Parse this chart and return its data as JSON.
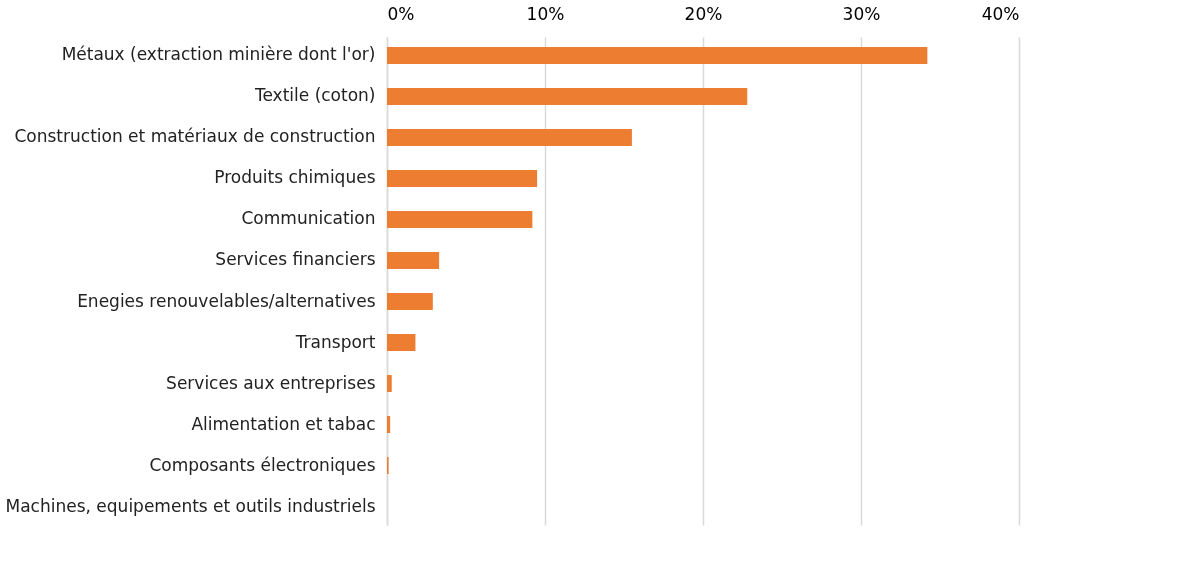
{
  "chart_data": {
    "type": "bar",
    "orientation": "horizontal",
    "categories": [
      "Métaux (extraction minière dont l'or)",
      "Textile (coton)",
      "Construction et matériaux de construction",
      "Produits chimiques",
      "Communication",
      "Services financiers",
      "Enegies renouvelables/alternatives",
      "Transport",
      "Services aux entreprises",
      "Alimentation et tabac",
      "Composants électroniques",
      "Machines, equipements et outils industriels"
    ],
    "values": [
      34.2,
      22.8,
      15.5,
      9.5,
      9.2,
      3.3,
      2.9,
      1.8,
      0.3,
      0.2,
      0.1,
      0.0
    ],
    "color": "#ed7d31",
    "xlim": [
      0,
      40
    ],
    "xticks": [
      {
        "value": 0,
        "label": "0%"
      },
      {
        "value": 10,
        "label": "10%"
      },
      {
        "value": 20,
        "label": "20%"
      },
      {
        "value": 30,
        "label": "30%"
      },
      {
        "value": 40,
        "label": "40%"
      }
    ],
    "grid": "x"
  }
}
